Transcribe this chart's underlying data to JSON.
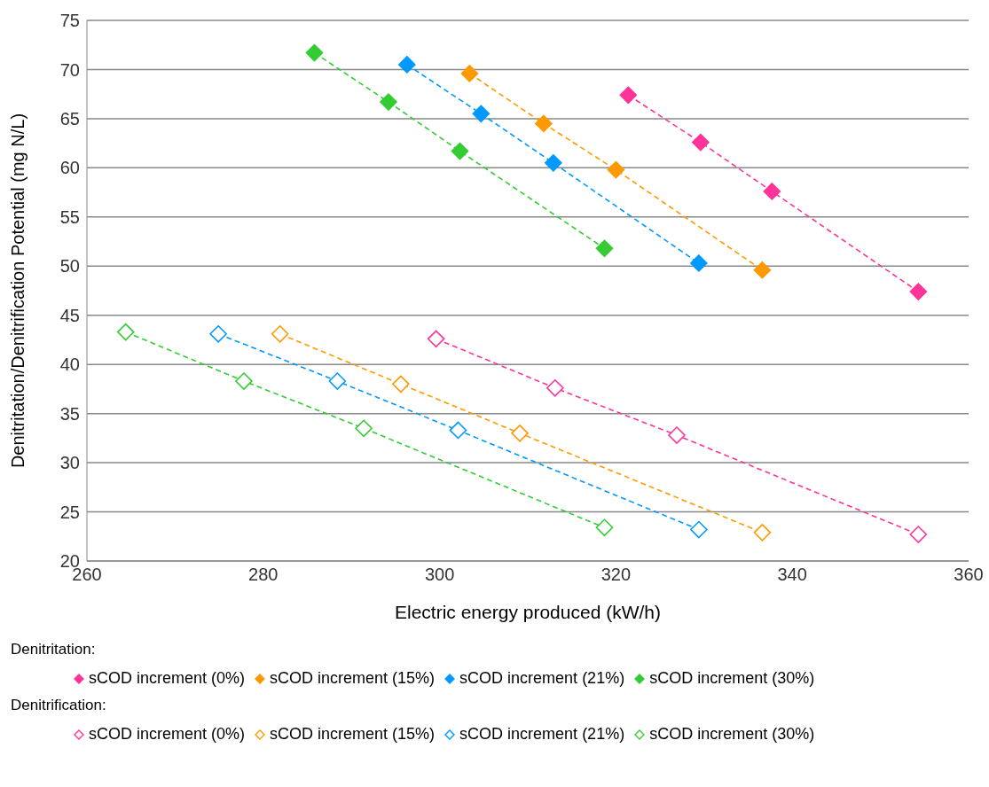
{
  "chart_data": {
    "type": "line",
    "xlabel": "Electric energy produced (kW/h)",
    "ylabel": "Denitritation/Denitrification Potential (mg N/L)",
    "xlim": [
      260,
      360
    ],
    "xticks": [
      260,
      280,
      300,
      320,
      340,
      360
    ],
    "ylim": [
      20,
      75
    ],
    "yticks": [
      20,
      25,
      30,
      35,
      40,
      45,
      50,
      55,
      60,
      65,
      70,
      75
    ],
    "grid": "y",
    "legend": "bottom",
    "marker": "diamond",
    "line_style": "dashed",
    "annotations": [
      "Denitritation:",
      "Denitrification:"
    ],
    "series": [
      {
        "name": "sCOD increment (0%)",
        "color": "#ff3399",
        "x": [
          321.4,
          329.6,
          337.7,
          354.3
        ],
        "values": [
          67.4,
          62.6,
          57.6,
          47.4
        ]
      },
      {
        "name": "sCOD increment (15%)",
        "color": "#ff9900",
        "x": [
          303.4,
          311.8,
          320.0,
          336.6
        ],
        "values": [
          69.6,
          64.5,
          59.8,
          49.6
        ]
      },
      {
        "name": "sCOD increment (21%)",
        "color": "#0099ff",
        "x": [
          296.3,
          304.7,
          312.9,
          329.4
        ],
        "values": [
          70.5,
          65.5,
          60.5,
          50.3
        ]
      },
      {
        "name": "sCOD increment (30%)",
        "color": "#33cc33",
        "x": [
          285.8,
          294.2,
          302.3,
          318.7
        ],
        "values": [
          71.7,
          66.7,
          61.7,
          51.8
        ]
      },
      {
        "name": "sCOD increment (0%)",
        "color": "#ff3399",
        "x": [
          299.6,
          313.1,
          326.9,
          354.3
        ],
        "values": [
          42.6,
          37.6,
          32.8,
          22.7
        ]
      },
      {
        "name": "sCOD increment (15%)",
        "color": "#ff9900",
        "x": [
          281.9,
          295.6,
          309.1,
          336.6
        ],
        "values": [
          43.1,
          38.0,
          33.0,
          22.9
        ]
      },
      {
        "name": "sCOD increment (21%)",
        "color": "#0099ff",
        "x": [
          274.9,
          288.4,
          302.1,
          329.4
        ],
        "values": [
          43.1,
          38.3,
          33.3,
          23.2
        ]
      },
      {
        "name": "sCOD increment (30%)",
        "color": "#33cc33",
        "x": [
          264.4,
          277.8,
          291.4,
          318.7
        ],
        "values": [
          43.3,
          38.3,
          33.5,
          23.4
        ]
      }
    ]
  }
}
